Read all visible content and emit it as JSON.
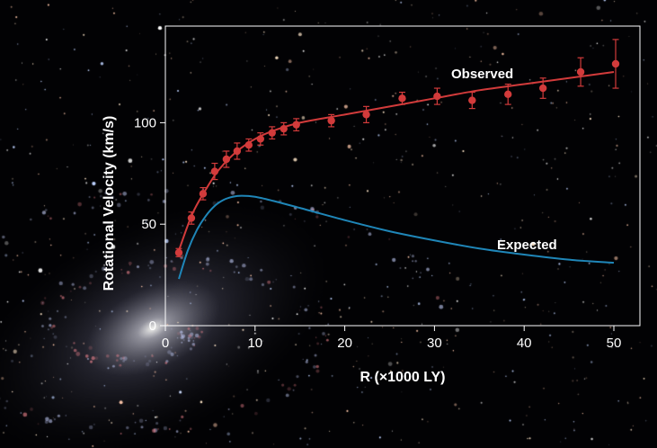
{
  "chart_data": {
    "type": "scatter",
    "xlabel": "R (×1000 LY)",
    "ylabel": "Rotational Velocity (km/s)",
    "xlim": [
      0,
      53
    ],
    "ylim": [
      0,
      148
    ],
    "x_ticks": [
      "0",
      "10",
      "20",
      "30",
      "40",
      "50"
    ],
    "y_ticks": [
      "0",
      "50",
      "100"
    ],
    "grid": false,
    "series": [
      {
        "name": "Observed",
        "color": "#d23b3b",
        "points": [
          {
            "x": 1.5,
            "y": 36,
            "err": 2
          },
          {
            "x": 2.9,
            "y": 53,
            "err": 3
          },
          {
            "x": 4.2,
            "y": 65,
            "err": 3
          },
          {
            "x": 5.5,
            "y": 76,
            "err": 4
          },
          {
            "x": 6.8,
            "y": 82,
            "err": 4
          },
          {
            "x": 8.0,
            "y": 86,
            "err": 4
          },
          {
            "x": 9.3,
            "y": 89,
            "err": 3
          },
          {
            "x": 10.6,
            "y": 92,
            "err": 3
          },
          {
            "x": 11.9,
            "y": 95,
            "err": 3
          },
          {
            "x": 13.2,
            "y": 97,
            "err": 3
          },
          {
            "x": 14.6,
            "y": 99,
            "err": 3
          },
          {
            "x": 18.5,
            "y": 101,
            "err": 3
          },
          {
            "x": 22.4,
            "y": 104,
            "err": 4
          },
          {
            "x": 26.4,
            "y": 112,
            "err": 3
          },
          {
            "x": 30.3,
            "y": 113,
            "err": 4
          },
          {
            "x": 34.2,
            "y": 111,
            "err": 4
          },
          {
            "x": 38.2,
            "y": 114,
            "err": 5
          },
          {
            "x": 42.1,
            "y": 117,
            "err": 5
          },
          {
            "x": 46.3,
            "y": 125,
            "err": 7
          },
          {
            "x": 50.2,
            "y": 129,
            "err": 12
          }
        ],
        "fit": [
          {
            "x": 1.5,
            "y": 37
          },
          {
            "x": 3,
            "y": 55
          },
          {
            "x": 4.5,
            "y": 67
          },
          {
            "x": 6,
            "y": 77
          },
          {
            "x": 8,
            "y": 86
          },
          {
            "x": 10,
            "y": 92
          },
          {
            "x": 12,
            "y": 96
          },
          {
            "x": 15,
            "y": 100
          },
          {
            "x": 20,
            "y": 104
          },
          {
            "x": 25,
            "y": 108
          },
          {
            "x": 30,
            "y": 112
          },
          {
            "x": 35,
            "y": 116
          },
          {
            "x": 40,
            "y": 119
          },
          {
            "x": 45,
            "y": 122
          },
          {
            "x": 50,
            "y": 125
          }
        ]
      },
      {
        "name": "Expected",
        "color": "#1f86b8",
        "curve": [
          {
            "x": 1.5,
            "y": 23
          },
          {
            "x": 2.5,
            "y": 37
          },
          {
            "x": 3.5,
            "y": 47
          },
          {
            "x": 4.5,
            "y": 54
          },
          {
            "x": 5.5,
            "y": 59
          },
          {
            "x": 6.5,
            "y": 62
          },
          {
            "x": 7.5,
            "y": 63.5
          },
          {
            "x": 8.5,
            "y": 64
          },
          {
            "x": 10,
            "y": 63.5
          },
          {
            "x": 12,
            "y": 61.5
          },
          {
            "x": 15,
            "y": 58
          },
          {
            "x": 20,
            "y": 52
          },
          {
            "x": 25,
            "y": 46.5
          },
          {
            "x": 30,
            "y": 42
          },
          {
            "x": 35,
            "y": 38
          },
          {
            "x": 40,
            "y": 35
          },
          {
            "x": 45,
            "y": 32.5
          },
          {
            "x": 50,
            "y": 31
          }
        ]
      }
    ]
  }
}
